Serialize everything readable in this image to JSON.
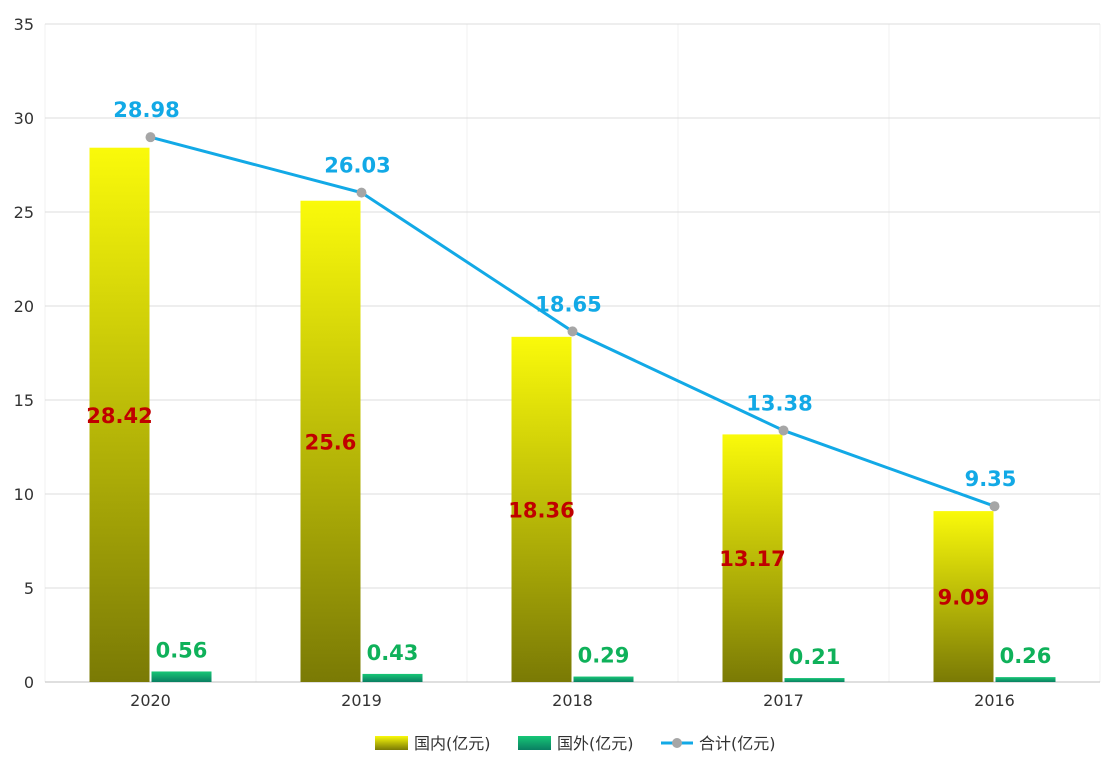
{
  "chart_data": {
    "type": "bar",
    "categories": [
      "2020",
      "2019",
      "2018",
      "2017",
      "2016"
    ],
    "series": [
      {
        "name": "国内(亿元)",
        "kind": "bar",
        "values": [
          28.42,
          25.6,
          18.36,
          13.17,
          9.09
        ]
      },
      {
        "name": "国外(亿元)",
        "kind": "bar",
        "values": [
          0.56,
          0.43,
          0.29,
          0.21,
          0.26
        ]
      },
      {
        "name": "合计(亿元)",
        "kind": "line",
        "values": [
          28.98,
          26.03,
          18.65,
          13.38,
          9.35
        ]
      }
    ],
    "data_labels": {
      "domestic": [
        "28.42",
        "25.6",
        "18.36",
        "13.17",
        "9.09"
      ],
      "foreign": [
        "0.56",
        "0.43",
        "0.29",
        "0.21",
        "0.26"
      ],
      "total": [
        "28.98",
        "26.03",
        "18.65",
        "13.38",
        "9.35"
      ]
    },
    "y_ticks": [
      "0",
      "5",
      "10",
      "15",
      "20",
      "25",
      "30",
      "35"
    ],
    "ylim": [
      0,
      35
    ],
    "title": "",
    "xlabel": "",
    "ylabel": "",
    "grid": true,
    "legend_position": "bottom-center"
  },
  "legend": {
    "domestic": "国内(亿元)",
    "foreign": "国外(亿元)",
    "total": "合计(亿元)"
  },
  "colors": {
    "domestic_top": "#fafa0a",
    "domestic_bottom": "#7a7a05",
    "foreign_top": "#17c776",
    "foreign_bottom": "#0a7f62",
    "total_line": "#12a9e6",
    "marker": "#a6a6a6",
    "domestic_label": "#c00000",
    "foreign_label": "#0fb15a",
    "grid": "#dcdcdc"
  }
}
